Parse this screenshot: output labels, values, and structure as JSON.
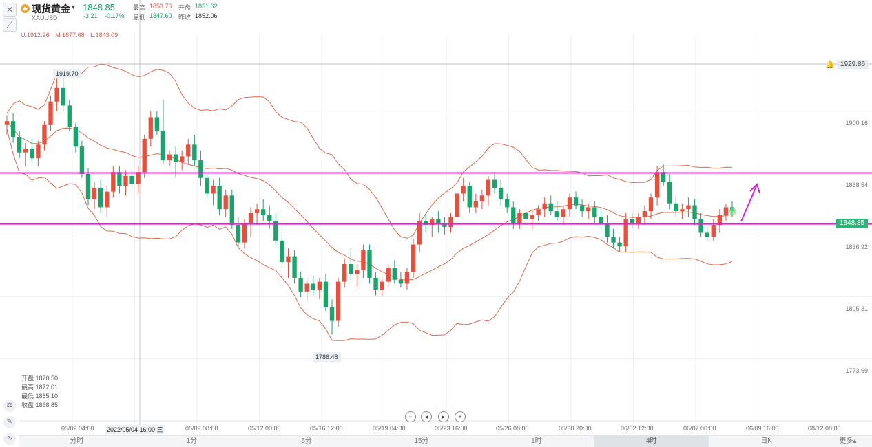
{
  "header": {
    "symbol_name": "现货黄金",
    "symbol_code": "XAUUSD",
    "gold_icon": "gold-coin-icon",
    "last_price": "1848.85",
    "change": "-3.21",
    "change_pct": "-0.17%",
    "high_label": "最高",
    "high_value": "1853.76",
    "open_label": "开盘",
    "open_value": "1851.62",
    "low_label": "最低",
    "low_value": "1847.60",
    "prev_label": "昨收",
    "prev_value": "1852.06"
  },
  "indicator": {
    "upper": "U:1912.26",
    "middle": "M:1877.68",
    "lower": "L:1843.09"
  },
  "ohlc_panel": [
    "开盘 1870.50",
    "最高 1872.01",
    "最低 1865.10",
    "收盘 1868.85"
  ],
  "price_axis": [
    "1900.16",
    "1868.54",
    "1836.92",
    "1805.31",
    "1773.69"
  ],
  "alert_price": "1929.86",
  "current_price_tag": "1848.85",
  "extremes": {
    "high": "1919.70",
    "low": "1786.48"
  },
  "time_axis": [
    "05/02 04:00",
    "2022/05/04 16:00 三",
    "05/09 08:00",
    "05/12 00:00",
    "05/16 12:00",
    "05/19 04:00",
    "05/23 16:00",
    "05/26 08:00",
    "05/30 20:00",
    "06/02 12:00",
    "06/07 00:00",
    "06/09 16:00",
    "08/12 08:00"
  ],
  "tabs": [
    "分时",
    "1分",
    "5分",
    "15分",
    "1时",
    "4时",
    "日K",
    "更多▴"
  ],
  "active_tab": "4时",
  "colors": {
    "up": "#e8503e",
    "down": "#1aa36a",
    "boll": "#e06a4e",
    "hline": "#e020d8"
  },
  "chart_data": {
    "type": "candlestick",
    "title": "",
    "ylim": [
      1760,
      1945
    ],
    "candles": [
      {
        "o": 1893,
        "h": 1898,
        "l": 1888,
        "c": 1895
      },
      {
        "o": 1895,
        "h": 1899,
        "l": 1884,
        "c": 1887
      },
      {
        "o": 1887,
        "h": 1890,
        "l": 1876,
        "c": 1879
      },
      {
        "o": 1879,
        "h": 1884,
        "l": 1872,
        "c": 1881
      },
      {
        "o": 1881,
        "h": 1886,
        "l": 1874,
        "c": 1876
      },
      {
        "o": 1876,
        "h": 1885,
        "l": 1872,
        "c": 1883
      },
      {
        "o": 1883,
        "h": 1895,
        "l": 1880,
        "c": 1893
      },
      {
        "o": 1893,
        "h": 1908,
        "l": 1890,
        "c": 1905
      },
      {
        "o": 1905,
        "h": 1917,
        "l": 1900,
        "c": 1912
      },
      {
        "o": 1912,
        "h": 1920,
        "l": 1900,
        "c": 1903
      },
      {
        "o": 1903,
        "h": 1906,
        "l": 1890,
        "c": 1892
      },
      {
        "o": 1892,
        "h": 1894,
        "l": 1879,
        "c": 1882
      },
      {
        "o": 1882,
        "h": 1885,
        "l": 1866,
        "c": 1868
      },
      {
        "o": 1868,
        "h": 1871,
        "l": 1852,
        "c": 1855
      },
      {
        "o": 1855,
        "h": 1864,
        "l": 1850,
        "c": 1861
      },
      {
        "o": 1861,
        "h": 1865,
        "l": 1848,
        "c": 1851
      },
      {
        "o": 1851,
        "h": 1862,
        "l": 1846,
        "c": 1859
      },
      {
        "o": 1859,
        "h": 1872,
        "l": 1856,
        "c": 1869
      },
      {
        "o": 1869,
        "h": 1872,
        "l": 1858,
        "c": 1862
      },
      {
        "o": 1862,
        "h": 1870,
        "l": 1857,
        "c": 1867
      },
      {
        "o": 1867,
        "h": 1870,
        "l": 1860,
        "c": 1863
      },
      {
        "o": 1863,
        "h": 1872,
        "l": 1858,
        "c": 1869
      },
      {
        "o": 1869,
        "h": 1888,
        "l": 1866,
        "c": 1886
      },
      {
        "o": 1886,
        "h": 1900,
        "l": 1882,
        "c": 1897
      },
      {
        "o": 1897,
        "h": 1900,
        "l": 1888,
        "c": 1890
      },
      {
        "o": 1890,
        "h": 1906,
        "l": 1873,
        "c": 1875
      },
      {
        "o": 1875,
        "h": 1880,
        "l": 1872,
        "c": 1878
      },
      {
        "o": 1878,
        "h": 1882,
        "l": 1866,
        "c": 1874
      },
      {
        "o": 1874,
        "h": 1880,
        "l": 1870,
        "c": 1877
      },
      {
        "o": 1877,
        "h": 1886,
        "l": 1873,
        "c": 1883
      },
      {
        "o": 1883,
        "h": 1888,
        "l": 1872,
        "c": 1875
      },
      {
        "o": 1875,
        "h": 1880,
        "l": 1862,
        "c": 1866
      },
      {
        "o": 1866,
        "h": 1868,
        "l": 1855,
        "c": 1858
      },
      {
        "o": 1858,
        "h": 1865,
        "l": 1852,
        "c": 1862
      },
      {
        "o": 1862,
        "h": 1866,
        "l": 1847,
        "c": 1850
      },
      {
        "o": 1850,
        "h": 1860,
        "l": 1846,
        "c": 1857
      },
      {
        "o": 1857,
        "h": 1860,
        "l": 1840,
        "c": 1842
      },
      {
        "o": 1842,
        "h": 1846,
        "l": 1830,
        "c": 1833
      },
      {
        "o": 1833,
        "h": 1845,
        "l": 1830,
        "c": 1843
      },
      {
        "o": 1843,
        "h": 1851,
        "l": 1836,
        "c": 1848
      },
      {
        "o": 1848,
        "h": 1853,
        "l": 1842,
        "c": 1850
      },
      {
        "o": 1850,
        "h": 1855,
        "l": 1844,
        "c": 1847
      },
      {
        "o": 1847,
        "h": 1852,
        "l": 1840,
        "c": 1844
      },
      {
        "o": 1844,
        "h": 1848,
        "l": 1832,
        "c": 1834
      },
      {
        "o": 1834,
        "h": 1840,
        "l": 1820,
        "c": 1823
      },
      {
        "o": 1823,
        "h": 1830,
        "l": 1815,
        "c": 1826
      },
      {
        "o": 1826,
        "h": 1829,
        "l": 1812,
        "c": 1815
      },
      {
        "o": 1815,
        "h": 1818,
        "l": 1805,
        "c": 1808
      },
      {
        "o": 1808,
        "h": 1815,
        "l": 1803,
        "c": 1812
      },
      {
        "o": 1812,
        "h": 1816,
        "l": 1806,
        "c": 1809
      },
      {
        "o": 1809,
        "h": 1815,
        "l": 1804,
        "c": 1813
      },
      {
        "o": 1813,
        "h": 1817,
        "l": 1798,
        "c": 1800
      },
      {
        "o": 1800,
        "h": 1804,
        "l": 1786,
        "c": 1793
      },
      {
        "o": 1793,
        "h": 1815,
        "l": 1790,
        "c": 1813
      },
      {
        "o": 1813,
        "h": 1825,
        "l": 1810,
        "c": 1822
      },
      {
        "o": 1822,
        "h": 1830,
        "l": 1814,
        "c": 1817
      },
      {
        "o": 1817,
        "h": 1822,
        "l": 1810,
        "c": 1819
      },
      {
        "o": 1819,
        "h": 1832,
        "l": 1815,
        "c": 1829
      },
      {
        "o": 1829,
        "h": 1832,
        "l": 1812,
        "c": 1815
      },
      {
        "o": 1815,
        "h": 1818,
        "l": 1806,
        "c": 1809
      },
      {
        "o": 1809,
        "h": 1815,
        "l": 1806,
        "c": 1813
      },
      {
        "o": 1813,
        "h": 1822,
        "l": 1810,
        "c": 1820
      },
      {
        "o": 1820,
        "h": 1824,
        "l": 1812,
        "c": 1814
      },
      {
        "o": 1814,
        "h": 1818,
        "l": 1810,
        "c": 1812
      },
      {
        "o": 1812,
        "h": 1820,
        "l": 1809,
        "c": 1818
      },
      {
        "o": 1818,
        "h": 1835,
        "l": 1815,
        "c": 1832
      },
      {
        "o": 1832,
        "h": 1848,
        "l": 1828,
        "c": 1844
      },
      {
        "o": 1844,
        "h": 1848,
        "l": 1838,
        "c": 1842
      },
      {
        "o": 1842,
        "h": 1846,
        "l": 1836,
        "c": 1845
      },
      {
        "o": 1845,
        "h": 1849,
        "l": 1838,
        "c": 1843
      },
      {
        "o": 1843,
        "h": 1846,
        "l": 1837,
        "c": 1841
      },
      {
        "o": 1841,
        "h": 1848,
        "l": 1838,
        "c": 1846
      },
      {
        "o": 1846,
        "h": 1860,
        "l": 1843,
        "c": 1858
      },
      {
        "o": 1858,
        "h": 1866,
        "l": 1854,
        "c": 1862
      },
      {
        "o": 1862,
        "h": 1864,
        "l": 1848,
        "c": 1851
      },
      {
        "o": 1851,
        "h": 1858,
        "l": 1848,
        "c": 1854
      },
      {
        "o": 1854,
        "h": 1860,
        "l": 1850,
        "c": 1857
      },
      {
        "o": 1857,
        "h": 1867,
        "l": 1852,
        "c": 1865
      },
      {
        "o": 1865,
        "h": 1869,
        "l": 1858,
        "c": 1861
      },
      {
        "o": 1861,
        "h": 1865,
        "l": 1852,
        "c": 1855
      },
      {
        "o": 1855,
        "h": 1858,
        "l": 1848,
        "c": 1851
      },
      {
        "o": 1851,
        "h": 1854,
        "l": 1840,
        "c": 1843
      },
      {
        "o": 1843,
        "h": 1850,
        "l": 1840,
        "c": 1848
      },
      {
        "o": 1848,
        "h": 1852,
        "l": 1842,
        "c": 1845
      },
      {
        "o": 1845,
        "h": 1850,
        "l": 1840,
        "c": 1847
      },
      {
        "o": 1847,
        "h": 1852,
        "l": 1844,
        "c": 1850
      },
      {
        "o": 1850,
        "h": 1856,
        "l": 1846,
        "c": 1853
      },
      {
        "o": 1853,
        "h": 1857,
        "l": 1847,
        "c": 1849
      },
      {
        "o": 1849,
        "h": 1854,
        "l": 1844,
        "c": 1846
      },
      {
        "o": 1846,
        "h": 1852,
        "l": 1842,
        "c": 1850
      },
      {
        "o": 1850,
        "h": 1858,
        "l": 1846,
        "c": 1856
      },
      {
        "o": 1856,
        "h": 1859,
        "l": 1850,
        "c": 1852
      },
      {
        "o": 1852,
        "h": 1855,
        "l": 1846,
        "c": 1849
      },
      {
        "o": 1849,
        "h": 1853,
        "l": 1845,
        "c": 1851
      },
      {
        "o": 1851,
        "h": 1854,
        "l": 1843,
        "c": 1846
      },
      {
        "o": 1846,
        "h": 1850,
        "l": 1840,
        "c": 1843
      },
      {
        "o": 1843,
        "h": 1847,
        "l": 1833,
        "c": 1836
      },
      {
        "o": 1836,
        "h": 1840,
        "l": 1830,
        "c": 1833
      },
      {
        "o": 1833,
        "h": 1836,
        "l": 1828,
        "c": 1831
      },
      {
        "o": 1831,
        "h": 1848,
        "l": 1828,
        "c": 1845
      },
      {
        "o": 1845,
        "h": 1848,
        "l": 1840,
        "c": 1843
      },
      {
        "o": 1843,
        "h": 1848,
        "l": 1840,
        "c": 1846
      },
      {
        "o": 1846,
        "h": 1852,
        "l": 1842,
        "c": 1849
      },
      {
        "o": 1849,
        "h": 1858,
        "l": 1845,
        "c": 1856
      },
      {
        "o": 1856,
        "h": 1872,
        "l": 1852,
        "c": 1869
      },
      {
        "o": 1869,
        "h": 1873,
        "l": 1862,
        "c": 1864
      },
      {
        "o": 1864,
        "h": 1868,
        "l": 1850,
        "c": 1853
      },
      {
        "o": 1853,
        "h": 1856,
        "l": 1846,
        "c": 1849
      },
      {
        "o": 1849,
        "h": 1853,
        "l": 1845,
        "c": 1850
      },
      {
        "o": 1850,
        "h": 1856,
        "l": 1846,
        "c": 1852
      },
      {
        "o": 1852,
        "h": 1855,
        "l": 1842,
        "c": 1845
      },
      {
        "o": 1845,
        "h": 1848,
        "l": 1836,
        "c": 1838
      },
      {
        "o": 1838,
        "h": 1842,
        "l": 1834,
        "c": 1836
      },
      {
        "o": 1836,
        "h": 1845,
        "l": 1834,
        "c": 1842
      },
      {
        "o": 1842,
        "h": 1850,
        "l": 1838,
        "c": 1847
      },
      {
        "o": 1847,
        "h": 1853,
        "l": 1844,
        "c": 1851
      },
      {
        "o": 1851,
        "h": 1854,
        "l": 1846,
        "c": 1849
      }
    ],
    "boll_period_note": "",
    "hlines": [
      1868.54,
      1842.5
    ]
  }
}
